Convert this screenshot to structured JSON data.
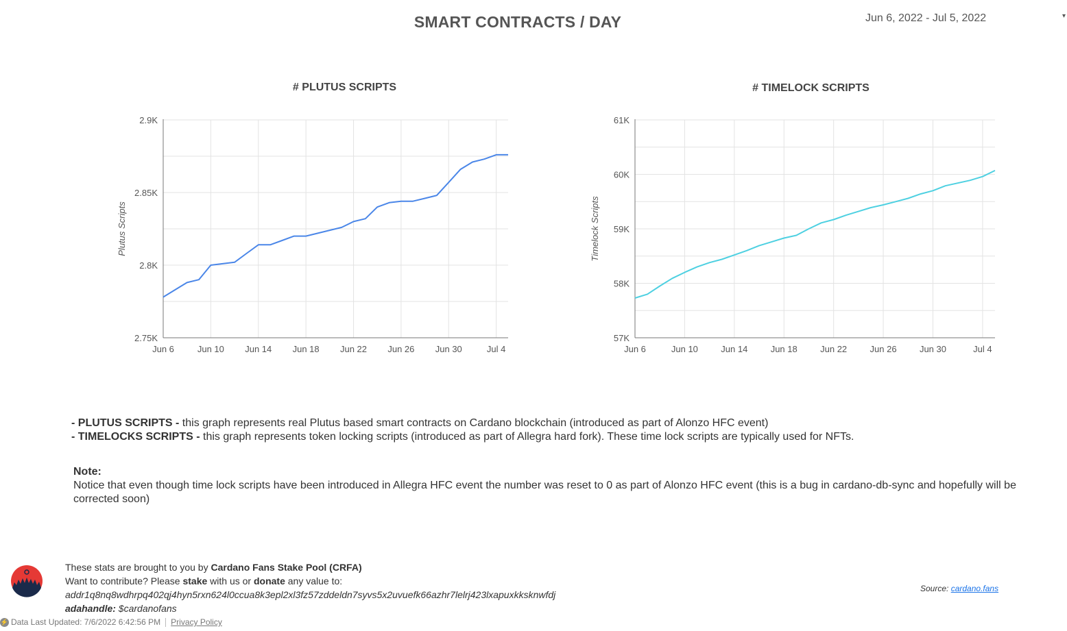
{
  "header": {
    "title": "SMART CONTRACTS / DAY",
    "date_range": "Jun 6, 2022 - Jul 5, 2022",
    "date_caret": "▾"
  },
  "chart_data": [
    {
      "type": "line",
      "title": "# PLUTUS SCRIPTS",
      "ylabel": "Plutus Scripts",
      "xlabel": "",
      "x_tick_labels": [
        "Jun 6",
        "Jun 10",
        "Jun 14",
        "Jun 18",
        "Jun 22",
        "Jun 26",
        "Jun 30",
        "Jul 4"
      ],
      "y_tick_labels": [
        "2.75K",
        "2.8K",
        "2.85K",
        "2.9K"
      ],
      "ylim": [
        2750,
        2900
      ],
      "color": "#4a86e8",
      "series": [
        {
          "x": [
            "Jun 6",
            "Jun 7",
            "Jun 8",
            "Jun 9",
            "Jun 10",
            "Jun 11",
            "Jun 12",
            "Jun 13",
            "Jun 14",
            "Jun 15",
            "Jun 16",
            "Jun 17",
            "Jun 18",
            "Jun 19",
            "Jun 20",
            "Jun 21",
            "Jun 22",
            "Jun 23",
            "Jun 24",
            "Jun 25",
            "Jun 26",
            "Jun 27",
            "Jun 28",
            "Jun 29",
            "Jun 30",
            "Jul 1",
            "Jul 2",
            "Jul 3",
            "Jul 4",
            "Jul 5"
          ],
          "values": [
            2778,
            2783,
            2788,
            2790,
            2800,
            2801,
            2802,
            2808,
            2814,
            2814,
            2817,
            2820,
            2820,
            2822,
            2824,
            2826,
            2830,
            2832,
            2840,
            2843,
            2844,
            2844,
            2846,
            2848,
            2857,
            2866,
            2871,
            2873,
            2876,
            2876
          ]
        }
      ]
    },
    {
      "type": "line",
      "title": "# TIMELOCK SCRIPTS",
      "ylabel": "Timelock Scripts",
      "xlabel": "",
      "x_tick_labels": [
        "Jun 6",
        "Jun 10",
        "Jun 14",
        "Jun 18",
        "Jun 22",
        "Jun 26",
        "Jun 30",
        "Jul 4"
      ],
      "y_tick_labels": [
        "57K",
        "58K",
        "59K",
        "60K",
        "61K"
      ],
      "ylim": [
        57000,
        61000
      ],
      "color": "#4dd0e1",
      "series": [
        {
          "x": [
            "Jun 6",
            "Jun 7",
            "Jun 8",
            "Jun 9",
            "Jun 10",
            "Jun 11",
            "Jun 12",
            "Jun 13",
            "Jun 14",
            "Jun 15",
            "Jun 16",
            "Jun 17",
            "Jun 18",
            "Jun 19",
            "Jun 20",
            "Jun 21",
            "Jun 22",
            "Jun 23",
            "Jun 24",
            "Jun 25",
            "Jun 26",
            "Jun 27",
            "Jun 28",
            "Jun 29",
            "Jun 30",
            "Jul 1",
            "Jul 2",
            "Jul 3",
            "Jul 4",
            "Jul 5"
          ],
          "values": [
            57730,
            57800,
            57950,
            58090,
            58200,
            58300,
            58380,
            58440,
            58520,
            58600,
            58690,
            58760,
            58830,
            58880,
            59000,
            59110,
            59170,
            59250,
            59320,
            59390,
            59440,
            59500,
            59560,
            59640,
            59700,
            59790,
            59840,
            59890,
            59960,
            60070
          ]
        }
      ]
    }
  ],
  "descriptions": {
    "plutus_label": "- PLUTUS SCRIPTS -",
    "plutus_text": " this graph represents real Plutus based smart contracts on Cardano blockchain (introduced as part of Alonzo HFC event)",
    "timelock_label": "- TIMELOCKS SCRIPTS -",
    "timelock_text": " this graph represents token locking scripts (introduced as part of Allegra hard fork). These time lock scripts are typically used for NFTs.",
    "note_label": "Note:",
    "note_text": "Notice that even though time lock scripts have been introduced in Allegra HFC event the number was reset to 0 as part of Alonzo HFC event (this is a bug in cardano-db-sync and hopefully will be corrected soon)"
  },
  "footer": {
    "line1_prefix": "These stats are brought to you by ",
    "line1_bold": "Cardano Fans Stake Pool (CRFA)",
    "line2_a": "Want to contribute? Please ",
    "line2_stake": "stake",
    "line2_b": " with us or ",
    "line2_donate": "donate",
    "line2_c": " any value to:",
    "address": "addr1q8nq8wdhrpq402qj4hyn5rxn624l0ccua8k3epl2xl3fz57zddeldn7syvs5x2uvuefk66azhr7lelrj423lxapuxkksknwfdj",
    "adahandle_label": "adahandle:",
    "adahandle_value": " $cardanofans",
    "source_label": "Source: ",
    "source_link": "cardano.fans",
    "updated": "Data Last Updated: 7/6/2022 6:42:56 PM",
    "privacy": "Privacy Policy",
    "logo_color": "#e53935",
    "logo_dark": "#1a2a4a"
  }
}
